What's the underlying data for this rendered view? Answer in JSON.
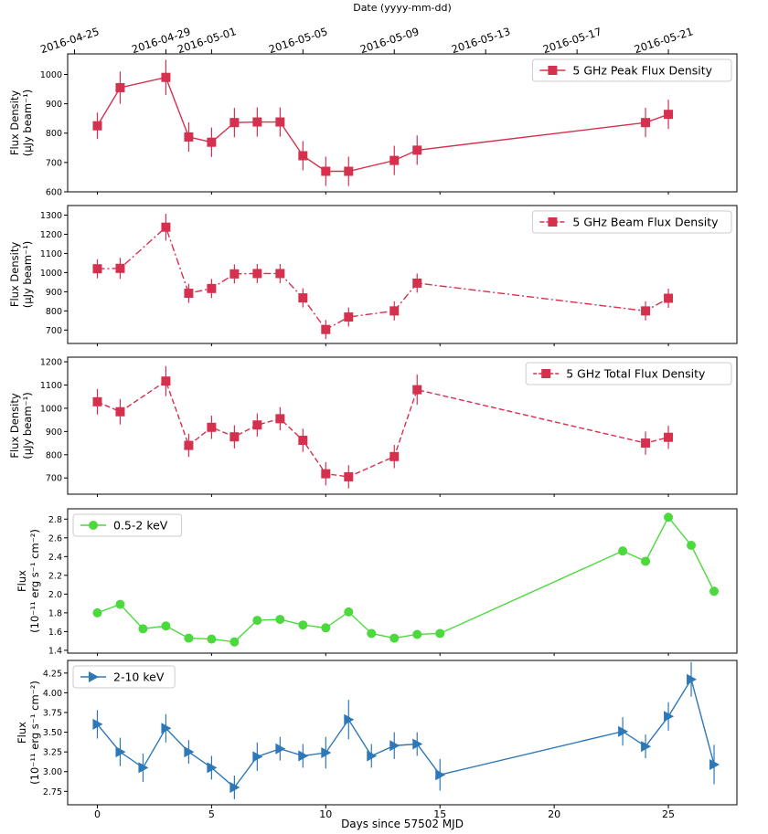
{
  "figure": {
    "top_axis_label": "Date (yyyy-mm-dd)",
    "top_ticks": [
      {
        "label": "2016-04-25",
        "x": -1
      },
      {
        "label": "2016-04-29",
        "x": 3
      },
      {
        "label": "2016-05-01",
        "x": 5
      },
      {
        "label": "2016-05-05",
        "x": 9
      },
      {
        "label": "2016-05-09",
        "x": 13
      },
      {
        "label": "2016-05-13",
        "x": 17
      },
      {
        "label": "2016-05-17",
        "x": 21
      },
      {
        "label": "2016-05-21",
        "x": 25
      }
    ],
    "xlabel": "Days since 57502 MJD",
    "x_ticks": [
      0,
      5,
      10,
      15,
      20,
      25
    ],
    "xlim": [
      -1.3,
      28
    ]
  },
  "chart_data": [
    {
      "type": "line",
      "legend": "5 GHz Peak Flux Density",
      "legend_position": "top-right",
      "ylabel_lines": [
        "Flux Density",
        "(μJy beam⁻¹)"
      ],
      "ylim": [
        600,
        1070
      ],
      "y_ticks": [
        600,
        700,
        800,
        900,
        1000
      ],
      "color": "#d6304f",
      "marker": "square",
      "line_style": "solid",
      "x": [
        0,
        1,
        3,
        4,
        5,
        6,
        7,
        8,
        9,
        10,
        11,
        13,
        14,
        24,
        25
      ],
      "y": [
        825,
        955,
        990,
        787,
        769,
        836,
        838,
        838,
        723,
        670,
        670,
        707,
        742,
        836,
        864
      ],
      "err": [
        45,
        55,
        60,
        50,
        50,
        50,
        50,
        50,
        50,
        50,
        50,
        50,
        50,
        50,
        50
      ]
    },
    {
      "type": "line",
      "legend": "5 GHz Beam Flux Density",
      "legend_position": "top-right",
      "ylabel_lines": [
        "Flux Density",
        "(μJy beam⁻¹)"
      ],
      "ylim": [
        630,
        1350
      ],
      "y_ticks": [
        700,
        800,
        900,
        1000,
        1100,
        1200,
        1300
      ],
      "color": "#d6304f",
      "marker": "square",
      "line_style": "dashdot",
      "x": [
        0,
        1,
        3,
        4,
        5,
        6,
        7,
        8,
        9,
        10,
        11,
        13,
        14,
        24,
        25
      ],
      "y": [
        1020,
        1022,
        1237,
        892,
        917,
        993,
        995,
        995,
        868,
        703,
        768,
        800,
        945,
        800,
        866
      ],
      "err": [
        50,
        55,
        70,
        50,
        50,
        50,
        50,
        50,
        50,
        50,
        50,
        50,
        50,
        50,
        50
      ]
    },
    {
      "type": "line",
      "legend": "5 GHz Total Flux Density",
      "legend_position": "top-right",
      "ylabel_lines": [
        "Flux Density",
        "(μJy beam⁻¹)"
      ],
      "ylim": [
        630,
        1220
      ],
      "y_ticks": [
        700,
        800,
        900,
        1000,
        1100,
        1200
      ],
      "color": "#d6304f",
      "marker": "square",
      "line_style": "dashed",
      "x": [
        0,
        1,
        3,
        4,
        5,
        6,
        7,
        8,
        9,
        10,
        11,
        13,
        14,
        24,
        25
      ],
      "y": [
        1028,
        985,
        1117,
        840,
        918,
        877,
        928,
        955,
        862,
        718,
        705,
        792,
        1080,
        850,
        875
      ],
      "err": [
        55,
        55,
        65,
        50,
        50,
        50,
        50,
        50,
        50,
        50,
        50,
        50,
        65,
        50,
        50
      ]
    },
    {
      "type": "line",
      "legend": "0.5-2 keV",
      "legend_position": "top-left",
      "ylabel_lines": [
        "Flux",
        "(10⁻¹¹ erg s⁻¹ cm⁻²)"
      ],
      "ylim": [
        1.37,
        2.91
      ],
      "y_ticks": [
        1.4,
        1.6,
        1.8,
        2.0,
        2.2,
        2.4,
        2.6,
        2.8
      ],
      "color": "#4cd93d",
      "marker": "circle",
      "line_style": "solid",
      "x": [
        0,
        1,
        2,
        3,
        4,
        5,
        6,
        7,
        8,
        9,
        10,
        11,
        12,
        13,
        14,
        15,
        23,
        24,
        25,
        26,
        27
      ],
      "y": [
        1.8,
        1.89,
        1.63,
        1.66,
        1.53,
        1.52,
        1.49,
        1.72,
        1.73,
        1.67,
        1.64,
        1.81,
        1.58,
        1.53,
        1.57,
        1.58,
        2.46,
        2.35,
        2.82,
        2.52,
        2.03
      ],
      "err": [
        0.02,
        0.02,
        0.02,
        0.02,
        0.02,
        0.02,
        0.02,
        0.02,
        0.02,
        0.02,
        0.02,
        0.04,
        0.02,
        0.02,
        0.02,
        0.02,
        0.03,
        0.03,
        0.04,
        0.03,
        0.05
      ]
    },
    {
      "type": "line",
      "legend": "2-10 keV",
      "legend_position": "top-left",
      "ylabel_lines": [
        "Flux",
        "(10⁻¹¹ erg s⁻¹ cm⁻²)"
      ],
      "ylim": [
        2.58,
        4.41
      ],
      "y_ticks": [
        2.75,
        3.0,
        3.25,
        3.5,
        3.75,
        4.0,
        4.25
      ],
      "color": "#2e78b7",
      "marker": "triangle-right",
      "line_style": "solid",
      "x": [
        0,
        1,
        2,
        3,
        4,
        5,
        6,
        7,
        8,
        9,
        10,
        11,
        12,
        13,
        14,
        15,
        23,
        24,
        25,
        26,
        27
      ],
      "y": [
        3.6,
        3.25,
        3.05,
        3.55,
        3.25,
        3.05,
        2.8,
        3.19,
        3.29,
        3.2,
        3.24,
        3.66,
        3.2,
        3.33,
        3.35,
        2.96,
        3.51,
        3.32,
        3.7,
        4.17,
        3.09
      ],
      "err": [
        0.18,
        0.18,
        0.18,
        0.18,
        0.15,
        0.15,
        0.15,
        0.18,
        0.15,
        0.15,
        0.2,
        0.25,
        0.15,
        0.17,
        0.15,
        0.2,
        0.18,
        0.15,
        0.18,
        0.22,
        0.25
      ]
    }
  ]
}
